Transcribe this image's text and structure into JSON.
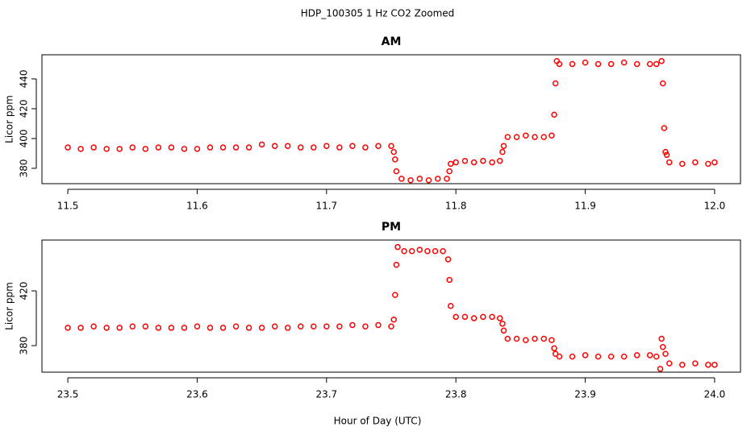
{
  "title": "HDP_100305  1 Hz CO2 Zoomed",
  "x_label": "Hour of Day (UTC)",
  "chart_data": [
    {
      "type": "scatter",
      "title": "AM",
      "y_label": "Licor ppm",
      "color": "#ff0000",
      "xlim": [
        11.48,
        12.02
      ],
      "ylim": [
        369.7,
        456.2
      ],
      "xticks": [
        11.5,
        11.6,
        11.7,
        11.8,
        11.9,
        {
          "value": 12,
          "label": "12.0"
        }
      ],
      "yticks": [
        380,
        400,
        420,
        440
      ],
      "x": [
        11.5,
        11.51,
        11.52,
        11.53,
        11.54,
        11.55,
        11.56,
        11.57,
        11.58,
        11.59,
        11.6,
        11.61,
        11.62,
        11.63,
        11.64,
        11.65,
        11.66,
        11.67,
        11.68,
        11.69,
        11.7,
        11.71,
        11.72,
        11.73,
        11.74,
        11.75,
        11.752,
        11.753,
        11.754,
        11.758,
        11.765,
        11.772,
        11.779,
        11.786,
        11.793,
        11.795,
        11.796,
        11.8,
        11.807,
        11.814,
        11.821,
        11.828,
        11.834,
        11.836,
        11.837,
        11.84,
        11.847,
        11.854,
        11.861,
        11.868,
        11.874,
        11.876,
        11.877,
        11.878,
        11.88,
        11.89,
        11.9,
        11.91,
        11.92,
        11.93,
        11.94,
        11.95,
        11.955,
        11.959,
        11.96,
        11.961,
        11.962,
        11.963,
        11.965,
        11.975,
        11.985,
        11.995,
        12.0
      ],
      "values": [
        394,
        393,
        394,
        393,
        393,
        394,
        393,
        394,
        394,
        393,
        393,
        394,
        394,
        394,
        394,
        396,
        395,
        395,
        394,
        394,
        395,
        394,
        395,
        394,
        395,
        395,
        391,
        386,
        378,
        373,
        372,
        373,
        372,
        373,
        373,
        378,
        383,
        384,
        385,
        384,
        385,
        384,
        385,
        391,
        395,
        401,
        401,
        402,
        401,
        401,
        402,
        416,
        437,
        452,
        450,
        450,
        451,
        450,
        450,
        451,
        450,
        450,
        450,
        452,
        437,
        407,
        391,
        389,
        384,
        383,
        384,
        383,
        384
      ]
    },
    {
      "type": "scatter",
      "title": "PM",
      "y_label": "Licor ppm",
      "color": "#ff0000",
      "xlim": [
        23.48,
        24.02
      ],
      "ylim": [
        360.6,
        457.1
      ],
      "xticks": [
        23.5,
        23.6,
        23.7,
        23.8,
        23.9,
        {
          "value": 24,
          "label": "24.0"
        }
      ],
      "yticks": [
        380,
        420
      ],
      "x": [
        23.5,
        23.51,
        23.52,
        23.53,
        23.54,
        23.55,
        23.56,
        23.57,
        23.58,
        23.59,
        23.6,
        23.61,
        23.62,
        23.63,
        23.64,
        23.65,
        23.66,
        23.67,
        23.68,
        23.69,
        23.7,
        23.71,
        23.72,
        23.73,
        23.74,
        23.75,
        23.752,
        23.753,
        23.754,
        23.755,
        23.76,
        23.766,
        23.772,
        23.778,
        23.784,
        23.79,
        23.794,
        23.795,
        23.796,
        23.8,
        23.807,
        23.814,
        23.821,
        23.828,
        23.834,
        23.836,
        23.837,
        23.84,
        23.847,
        23.854,
        23.861,
        23.868,
        23.874,
        23.876,
        23.877,
        23.88,
        23.89,
        23.9,
        23.91,
        23.92,
        23.93,
        23.94,
        23.95,
        23.955,
        23.958,
        23.959,
        23.96,
        23.962,
        23.965,
        23.975,
        23.985,
        23.995,
        24.0
      ],
      "values": [
        393,
        393,
        394,
        393,
        393,
        394,
        394,
        393,
        393,
        393,
        394,
        393,
        393,
        394,
        393,
        393,
        394,
        393,
        394,
        394,
        394,
        394,
        395,
        394,
        395,
        394,
        399,
        417,
        439,
        452,
        449,
        449,
        450,
        449,
        449,
        449,
        443,
        428,
        409,
        401,
        401,
        400,
        401,
        401,
        400,
        396,
        391,
        385,
        385,
        384,
        385,
        385,
        384,
        378,
        374,
        372,
        372,
        373,
        372,
        372,
        372,
        373,
        373,
        372,
        363,
        385,
        379,
        374,
        367,
        366,
        367,
        366,
        366
      ]
    }
  ]
}
